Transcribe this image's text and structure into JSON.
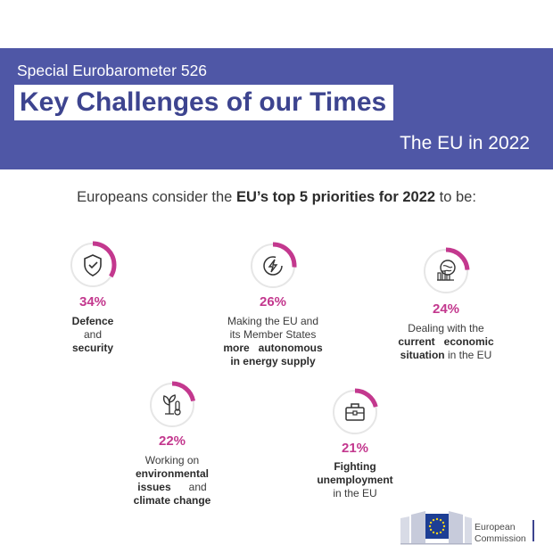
{
  "header": {
    "subtitle": "Special Eurobarometer 526",
    "title": "Key Challenges of our Times",
    "edition": "The EU in 2022"
  },
  "intro": {
    "pre": "Europeans consider the ",
    "bold": "EU’s top 5 priorities for 2022",
    "post": " to be:"
  },
  "colors": {
    "banner": "#4f57a6",
    "title_text": "#3d448f",
    "accent": "#c3388e",
    "ring_track": "#e6e6e6"
  },
  "chart_data": {
    "type": "donut-infographic",
    "unit": "%",
    "items": [
      {
        "label": "Defence and security",
        "value": 34,
        "icon": "shield-check-icon",
        "lines": [
          [
            "b",
            "Defence"
          ],
          [
            "n",
            "and"
          ],
          [
            "b",
            "security"
          ]
        ]
      },
      {
        "label": "Making the EU and its Member States more autonomous in energy supply",
        "value": 26,
        "icon": "energy-bolt-icon",
        "lines": [
          [
            "n",
            "Making the EU and"
          ],
          [
            "n",
            "its Member States"
          ],
          [
            "b",
            "more   autonomous"
          ],
          [
            "b",
            "in energy supply"
          ]
        ]
      },
      {
        "label": "Dealing with the current economic situation in the EU",
        "value": 24,
        "icon": "economy-globe-icon",
        "lines": [
          [
            "n",
            "Dealing with the"
          ],
          [
            "b",
            "current   economic"
          ],
          [
            "bn",
            "situation",
            " in the EU"
          ]
        ]
      },
      {
        "label": "Working on environmental issues and climate change",
        "value": 22,
        "icon": "plant-thermometer-icon",
        "lines": [
          [
            "n",
            "Working on"
          ],
          [
            "b",
            "environmental"
          ],
          [
            "bn",
            "issues",
            "      and"
          ],
          [
            "b",
            "climate change"
          ]
        ]
      },
      {
        "label": "Fighting unemployment in the EU",
        "value": 21,
        "icon": "briefcase-icon",
        "lines": [
          [
            "b",
            "Fighting"
          ],
          [
            "b",
            "unemployment"
          ],
          [
            "n",
            "in the EU"
          ]
        ]
      }
    ]
  },
  "logo": {
    "line1": "European",
    "line2": "Commission"
  }
}
